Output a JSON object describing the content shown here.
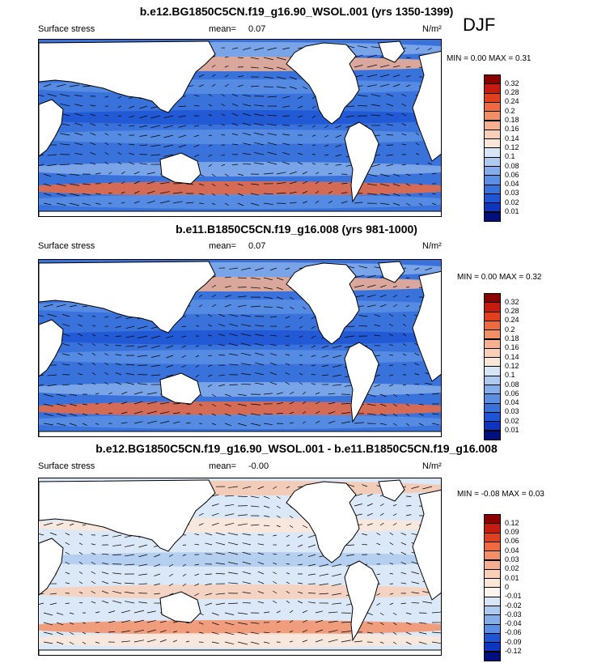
{
  "season": "DJF",
  "panels": [
    {
      "title": "b.e12.BG1850C5CN.f19_g16.90_WSOL.001 (yrs 1350-1399)",
      "variable": "Surface stress",
      "mean_label": "mean=",
      "mean_value": "0.07",
      "units": "N/m²",
      "minmax": "MIN =   0.00 MAX =   0.31",
      "colorbar_labels": [
        "0.32",
        "0.28",
        "0.24",
        "0.2",
        "0.18",
        "0.16",
        "0.14",
        "0.12",
        "0.1",
        "0.08",
        "0.06",
        "0.04",
        "0.03",
        "0.02",
        "0.01"
      ],
      "colorbar_colors": [
        "#8b0000",
        "#c51b10",
        "#e0401d",
        "#ef6a40",
        "#f38f68",
        "#f6b091",
        "#f9cfb8",
        "#fbe6d8",
        "#d7e5f6",
        "#aecaf0",
        "#85adea",
        "#5a8fe3",
        "#3a72dc",
        "#1f55d4",
        "#0d35c0",
        "#02107e"
      ],
      "chart_data": {
        "type": "heatmap",
        "title": "b.e12.BG1850C5CN.f19_g16.90_WSOL.001 (yrs 1350-1399)",
        "subtitle": "Surface stress",
        "mean": 0.07,
        "min": 0.0,
        "max": 0.31,
        "units": "N/m²",
        "colorbar_levels": [
          0.01,
          0.02,
          0.03,
          0.04,
          0.06,
          0.08,
          0.1,
          0.12,
          0.14,
          0.16,
          0.18,
          0.2,
          0.24,
          0.28,
          0.32
        ]
      }
    },
    {
      "title": "b.e11.B1850C5CN.f19_g16.008 (yrs 981-1000)",
      "variable": "Surface stress",
      "mean_label": "mean=",
      "mean_value": "0.07",
      "units": "N/m²",
      "minmax": "MIN =   0.00 MAX =   0.32",
      "colorbar_labels": [
        "0.32",
        "0.28",
        "0.24",
        "0.2",
        "0.18",
        "0.16",
        "0.14",
        "0.12",
        "0.1",
        "0.08",
        "0.06",
        "0.04",
        "0.03",
        "0.02",
        "0.01"
      ],
      "colorbar_colors": [
        "#8b0000",
        "#c51b10",
        "#e0401d",
        "#ef6a40",
        "#f38f68",
        "#f6b091",
        "#f9cfb8",
        "#fbe6d8",
        "#d7e5f6",
        "#aecaf0",
        "#85adea",
        "#5a8fe3",
        "#3a72dc",
        "#1f55d4",
        "#0d35c0",
        "#02107e"
      ],
      "chart_data": {
        "type": "heatmap",
        "title": "b.e11.B1850C5CN.f19_g16.008 (yrs 981-1000)",
        "subtitle": "Surface stress",
        "mean": 0.07,
        "min": 0.0,
        "max": 0.32,
        "units": "N/m²",
        "colorbar_levels": [
          0.01,
          0.02,
          0.03,
          0.04,
          0.06,
          0.08,
          0.1,
          0.12,
          0.14,
          0.16,
          0.18,
          0.2,
          0.24,
          0.28,
          0.32
        ]
      }
    },
    {
      "title": "b.e12.BG1850C5CN.f19_g16.90_WSOL.001 - b.e11.B1850C5CN.f19_g16.008",
      "variable": "Surface stress",
      "mean_label": "mean=",
      "mean_value": "-0.00",
      "units": "N/m²",
      "minmax": "MIN = -0.08 MAX =   0.03",
      "colorbar_labels": [
        "0.12",
        "0.09",
        "0.06",
        "0.04",
        "0.03",
        "0.02",
        "0.01",
        "0",
        "-0.01",
        "-0.02",
        "-0.03",
        "-0.04",
        "-0.06",
        "-0.09",
        "-0.12"
      ],
      "colorbar_colors": [
        "#8b0000",
        "#c51b10",
        "#e0401d",
        "#ef6a40",
        "#f38f68",
        "#f6b091",
        "#f9cfb8",
        "#fbe6d8",
        "#fdf3ee",
        "#d7e5f6",
        "#aecaf0",
        "#85adea",
        "#5a8fe3",
        "#1f55d4",
        "#0d35c0",
        "#02107e"
      ],
      "chart_data": {
        "type": "heatmap",
        "title": "b.e12.BG1850C5CN.f19_g16.90_WSOL.001 - b.e11.B1850C5CN.f19_g16.008",
        "subtitle": "Surface stress",
        "mean": -0.0,
        "min": -0.08,
        "max": 0.03,
        "units": "N/m²",
        "colorbar_levels": [
          -0.12,
          -0.09,
          -0.06,
          -0.04,
          -0.03,
          -0.02,
          -0.01,
          0,
          0.01,
          0.02,
          0.03,
          0.04,
          0.06,
          0.09,
          0.12
        ]
      }
    }
  ]
}
